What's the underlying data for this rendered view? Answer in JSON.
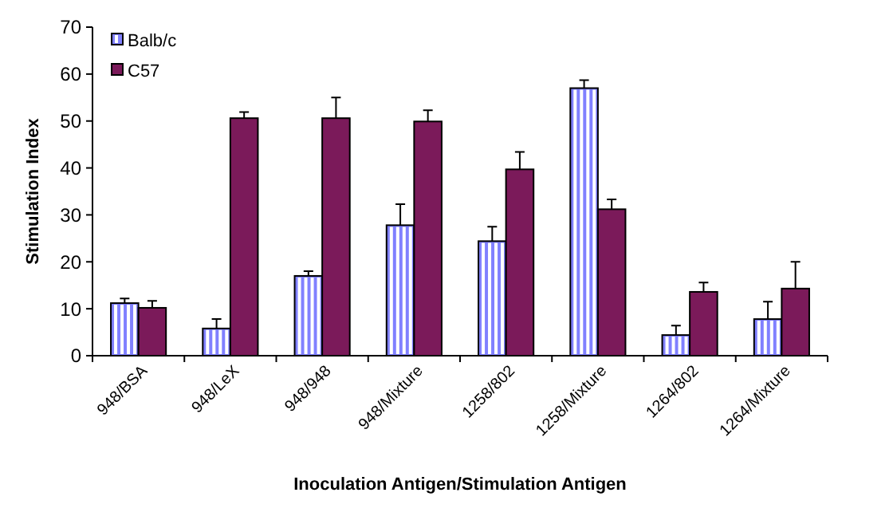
{
  "chart_data": {
    "type": "bar",
    "xlabel": "Inoculation Antigen/Stimulation Antigen",
    "ylabel": "Stimulation Index",
    "categories": [
      "948/BSA",
      "948/LeX",
      "948/948",
      "948/Mixture",
      "1258/802",
      "1258/Mixture",
      "1264/802",
      "1264/Mixture"
    ],
    "series": [
      {
        "name": "Balb/c",
        "color": "#8080ff",
        "values": [
          11.2,
          5.8,
          17,
          27.8,
          24.4,
          57,
          4.4,
          7.8
        ],
        "errors": [
          [
            11.2,
            12.2
          ],
          [
            5.8,
            7.8
          ],
          [
            17,
            18
          ],
          [
            27.8,
            32.3
          ],
          [
            24.4,
            27.5
          ],
          [
            57,
            58.7
          ],
          [
            4.4,
            6.4
          ],
          [
            7.8,
            11.5
          ]
        ]
      },
      {
        "name": "C57",
        "color": "#7b1a5a",
        "values": [
          10.2,
          50.6,
          50.6,
          49.9,
          39.7,
          31.2,
          13.6,
          14.3
        ],
        "errors": [
          [
            10.2,
            11.7
          ],
          [
            50.6,
            51.9
          ],
          [
            50.6,
            55
          ],
          [
            49.9,
            52.3
          ],
          [
            39.7,
            43.4
          ],
          [
            31.2,
            33.3
          ],
          [
            13.6,
            15.6
          ],
          [
            14.3,
            20
          ]
        ]
      }
    ],
    "ylim": [
      0,
      70
    ],
    "yticks": [
      0,
      10,
      20,
      30,
      40,
      50,
      60,
      70
    ],
    "legend": "top left"
  }
}
